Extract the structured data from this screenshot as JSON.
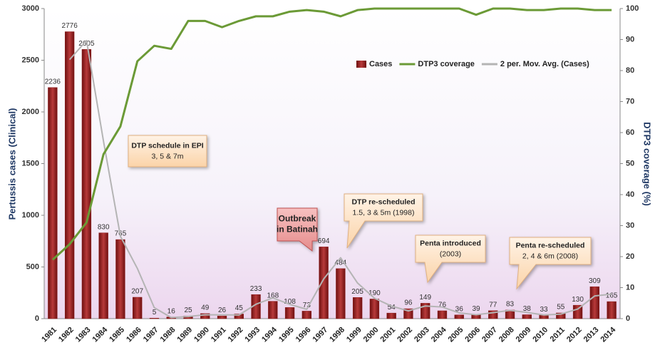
{
  "chart_data": {
    "type": "bar",
    "categories": [
      "1981",
      "1982",
      "1983",
      "1984",
      "1985",
      "1986",
      "1987",
      "1988",
      "1989",
      "1990",
      "1991",
      "1992",
      "1993",
      "1994",
      "1995",
      "1996",
      "1997",
      "1998",
      "1999",
      "2000",
      "2001",
      "2002",
      "2003",
      "2004",
      "2005",
      "2006",
      "2007",
      "2008",
      "2009",
      "2010",
      "2011",
      "2012",
      "2013",
      "2014"
    ],
    "series": [
      {
        "name": "Cases",
        "type": "bar",
        "color": "#8e1b1b",
        "values": [
          2236,
          2776,
          2605,
          830,
          765,
          207,
          5,
          16,
          25,
          49,
          26,
          45,
          233,
          168,
          108,
          73,
          694,
          484,
          205,
          190,
          54,
          96,
          149,
          76,
          36,
          39,
          77,
          83,
          38,
          33,
          55,
          130,
          309,
          165
        ]
      },
      {
        "name": "DTP3 coverage",
        "type": "line",
        "axis": "y2",
        "color": "#6b9a36",
        "values": [
          19,
          24,
          31,
          53,
          62,
          83,
          88,
          87,
          96,
          96,
          94,
          96,
          97.5,
          97.5,
          99,
          99.5,
          99,
          97.5,
          99.5,
          100,
          100,
          100,
          100,
          100,
          100,
          98,
          100,
          100,
          99.5,
          99.5,
          100,
          100,
          99.5,
          99.5
        ]
      },
      {
        "name": "2 per. Mov. Avg. (Cases)",
        "type": "line",
        "color": "#b4b4b4",
        "values": [
          null,
          2506,
          2690.5,
          1717.5,
          797.5,
          486,
          106,
          10.5,
          20.5,
          37,
          37.5,
          35.5,
          139,
          200.5,
          138,
          90.5,
          383.5,
          589,
          344.5,
          197.5,
          122,
          75,
          122.5,
          112.5,
          56,
          37.5,
          58,
          80,
          60.5,
          35.5,
          44,
          92.5,
          219.5,
          237
        ]
      }
    ],
    "ylabel": "Pertussis cases (Clinical)",
    "y2label": "DTP3 coverage (%)",
    "ylim": [
      0,
      3000
    ],
    "yticks": [
      0,
      500,
      1000,
      1500,
      2000,
      2500,
      3000
    ],
    "y2lim": [
      0,
      100
    ],
    "y2ticks": [
      0,
      10,
      20,
      30,
      40,
      50,
      60,
      70,
      80,
      90,
      100
    ],
    "annotations": [
      {
        "lines": [
          "DTP schedule in EPI",
          "3, 5 & 7m"
        ]
      },
      {
        "lines": [
          "Outbreak",
          "in Batinah"
        ]
      },
      {
        "lines": [
          "DTP re-scheduled",
          "1.5, 3 & 5m (1998)"
        ]
      },
      {
        "lines": [
          "Penta introduced",
          "(2003)"
        ]
      },
      {
        "lines": [
          "Penta re-scheduled",
          "2, 4 & 6m (2008)"
        ]
      }
    ]
  }
}
